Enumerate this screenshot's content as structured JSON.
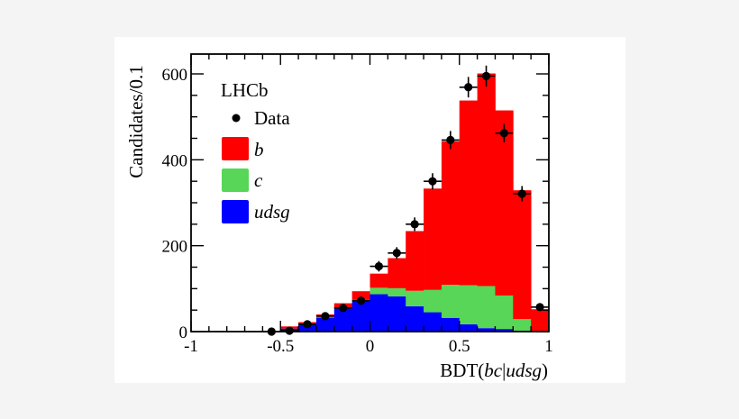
{
  "chart_data": {
    "type": "bar",
    "subtype": "stacked-histogram-with-data-points",
    "title": "",
    "xlabel": "BDT(bc|udsg)",
    "xlabel_parts": {
      "prefix": "BDT(",
      "italic": "bc",
      "sep": "|",
      "italic2": "udsg",
      "suffix": ")"
    },
    "ylabel": "Candidates/0.1",
    "xlim": [
      -1,
      1
    ],
    "ylim": [
      0,
      650
    ],
    "bin_width": 0.1,
    "x_ticks": [
      {
        "value": -1,
        "label": "-1"
      },
      {
        "value": -0.5,
        "label": "-0.5"
      },
      {
        "value": 0,
        "label": "0"
      },
      {
        "value": 0.5,
        "label": "0.5"
      },
      {
        "value": 1,
        "label": "1"
      }
    ],
    "y_ticks": [
      {
        "value": 0,
        "label": "0"
      },
      {
        "value": 200,
        "label": "200"
      },
      {
        "value": 400,
        "label": "400"
      },
      {
        "value": 600,
        "label": "600"
      }
    ],
    "grid": false,
    "legend_position": "upper-left",
    "experiment_label": "LHCb",
    "categories": [
      -0.95,
      -0.85,
      -0.75,
      -0.65,
      -0.55,
      -0.45,
      -0.35,
      -0.25,
      -0.15,
      -0.05,
      0.05,
      0.15,
      0.25,
      0.35,
      0.45,
      0.55,
      0.65,
      0.75,
      0.85,
      0.95
    ],
    "series": [
      {
        "name": "udsg",
        "legend": "udsg",
        "color": "#0000ff",
        "stack_order": 1,
        "values": [
          1,
          1,
          1,
          1,
          2,
          7,
          17,
          33,
          54,
          72,
          87,
          82,
          59,
          45,
          32,
          17,
          8,
          6,
          2,
          1
        ]
      },
      {
        "name": "c",
        "legend": "c",
        "color": "#57d657",
        "stack_order": 2,
        "values": [
          0,
          0,
          0,
          0,
          0,
          0,
          0,
          1,
          1,
          2,
          15,
          19,
          36,
          52,
          77,
          91,
          98,
          78,
          27,
          1
        ]
      },
      {
        "name": "b",
        "legend": "b",
        "color": "#ff0000",
        "stack_order": 3,
        "values": [
          0,
          0,
          0,
          0,
          0,
          5,
          5,
          6,
          11,
          20,
          33,
          70,
          139,
          236,
          334,
          430,
          495,
          431,
          300,
          50
        ]
      }
    ],
    "data_points": {
      "name": "Data",
      "legend": "Data",
      "color": "#000000",
      "x": [
        -0.55,
        -0.45,
        -0.35,
        -0.25,
        -0.15,
        -0.05,
        0.05,
        0.15,
        0.25,
        0.35,
        0.45,
        0.55,
        0.65,
        0.75,
        0.85,
        0.95
      ],
      "y": [
        0,
        2,
        17,
        36,
        55,
        72,
        152,
        183,
        250,
        350,
        446,
        569,
        595,
        462,
        321,
        57
      ],
      "yerr": [
        0,
        1.4,
        4.1,
        6,
        7.4,
        8.5,
        12.3,
        13.5,
        15.8,
        18.7,
        21.1,
        23.9,
        24.4,
        21.5,
        17.9,
        7.5
      ]
    }
  },
  "legend": {
    "experiment": "LHCb",
    "items": [
      {
        "kind": "marker",
        "label": "Data",
        "color": "#000000"
      },
      {
        "kind": "box",
        "label": "b",
        "color": "#ff0000"
      },
      {
        "kind": "box",
        "label": "c",
        "color": "#57d657"
      },
      {
        "kind": "box",
        "label": "udsg",
        "color": "#0000ff"
      }
    ]
  }
}
